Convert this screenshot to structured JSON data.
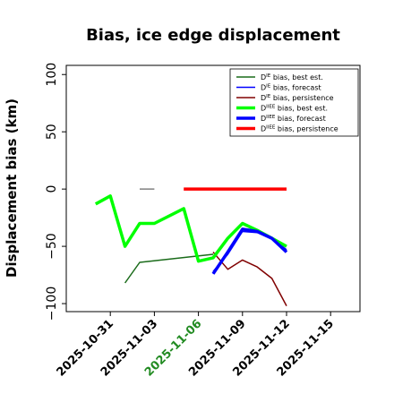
{
  "chart_data": {
    "type": "line",
    "title": "Bias, ice edge displacement",
    "xlabel": "",
    "ylabel": "Displacement bias (km)",
    "xlim": [
      "2025-10-28",
      "2025-11-17"
    ],
    "ylim": [
      -107,
      108
    ],
    "yticks": [
      -100,
      -50,
      0,
      50,
      100
    ],
    "yticklabels": [
      "−100",
      "−50",
      "0",
      "50",
      "100"
    ],
    "xticks": [
      "2025-10-31",
      "2025-11-03",
      "2025-11-06",
      "2025-11-09",
      "2025-11-12",
      "2025-11-15"
    ],
    "highlight_xtick": "2025-11-06",
    "highlight_color": "#228B22",
    "grid": false,
    "legend": "top-right",
    "series": [
      {
        "name": "D^IE bias, best est.",
        "color": "#1a6b1a",
        "width": 1.5,
        "x": [
          "2025-11-01",
          "2025-11-02",
          "2025-11-07"
        ],
        "y": [
          -82,
          -64,
          -57
        ]
      },
      {
        "name": "D^IE bias, forecast",
        "color": "#0000ff",
        "width": 1.5,
        "x": [
          "2025-11-07",
          "2025-11-08",
          "2025-11-09",
          "2025-11-10",
          "2025-11-11",
          "2025-11-12"
        ],
        "y": [
          -72,
          -57,
          -37,
          -38,
          -43,
          -53
        ]
      },
      {
        "name": "D^IE bias, persistence",
        "color": "#800000",
        "width": 1.5,
        "x": [
          "2025-11-07",
          "2025-11-08",
          "2025-11-09",
          "2025-11-10",
          "2025-11-11",
          "2025-11-12"
        ],
        "y": [
          -55,
          -70,
          -62,
          -68,
          -78,
          -102
        ]
      },
      {
        "name": "D^IIEE bias, best est.",
        "color": "#00ff00",
        "width": 3.5,
        "x": [
          "2025-10-30",
          "2025-10-31",
          "2025-11-01",
          "2025-11-02",
          "2025-11-03",
          "2025-11-05",
          "2025-11-06",
          "2025-11-07",
          "2025-11-08",
          "2025-11-09",
          "2025-11-10",
          "2025-11-11",
          "2025-11-12"
        ],
        "y": [
          -13,
          -6,
          -50,
          -30,
          -30,
          -17,
          -63,
          -60,
          -43,
          -30,
          -36,
          -43,
          -50
        ]
      },
      {
        "name": "D^IIEE bias, forecast",
        "color": "#0000ff",
        "width": 3.5,
        "x": [
          "2025-11-07",
          "2025-11-08",
          "2025-11-09",
          "2025-11-10",
          "2025-11-11",
          "2025-11-12"
        ],
        "y": [
          -74,
          -55,
          -35,
          -37,
          -43,
          -55
        ]
      },
      {
        "name": "D^IIEE bias, persistence",
        "color": "#ff0000",
        "width": 3.5,
        "x": [
          "2025-11-05",
          "2025-11-06",
          "2025-11-07",
          "2025-11-08",
          "2025-11-09",
          "2025-11-10",
          "2025-11-11",
          "2025-11-12"
        ],
        "y": [
          0,
          0,
          0,
          0,
          0,
          0,
          0,
          0
        ]
      },
      {
        "name": "",
        "color": "#808080",
        "width": 1.5,
        "x": [
          "2025-11-02",
          "2025-11-03"
        ],
        "y": [
          0,
          0
        ]
      }
    ],
    "legend_entries": [
      {
        "base": "D",
        "sup": "IE",
        "rest": " bias, best est.",
        "color": "#1a6b1a",
        "width": 1.5
      },
      {
        "base": "D",
        "sup": "IE",
        "rest": " bias, forecast",
        "color": "#0000ff",
        "width": 1.5
      },
      {
        "base": "D",
        "sup": "IE",
        "rest": " bias, persistence",
        "color": "#800000",
        "width": 1.5
      },
      {
        "base": "D",
        "sup": "IIEE",
        "rest": " bias, best est.",
        "color": "#00ff00",
        "width": 3.5
      },
      {
        "base": "D",
        "sup": "IIEE",
        "rest": " bias, forecast",
        "color": "#0000ff",
        "width": 3.5
      },
      {
        "base": "D",
        "sup": "IIEE",
        "rest": " bias, persistence",
        "color": "#ff0000",
        "width": 3.5
      }
    ]
  }
}
